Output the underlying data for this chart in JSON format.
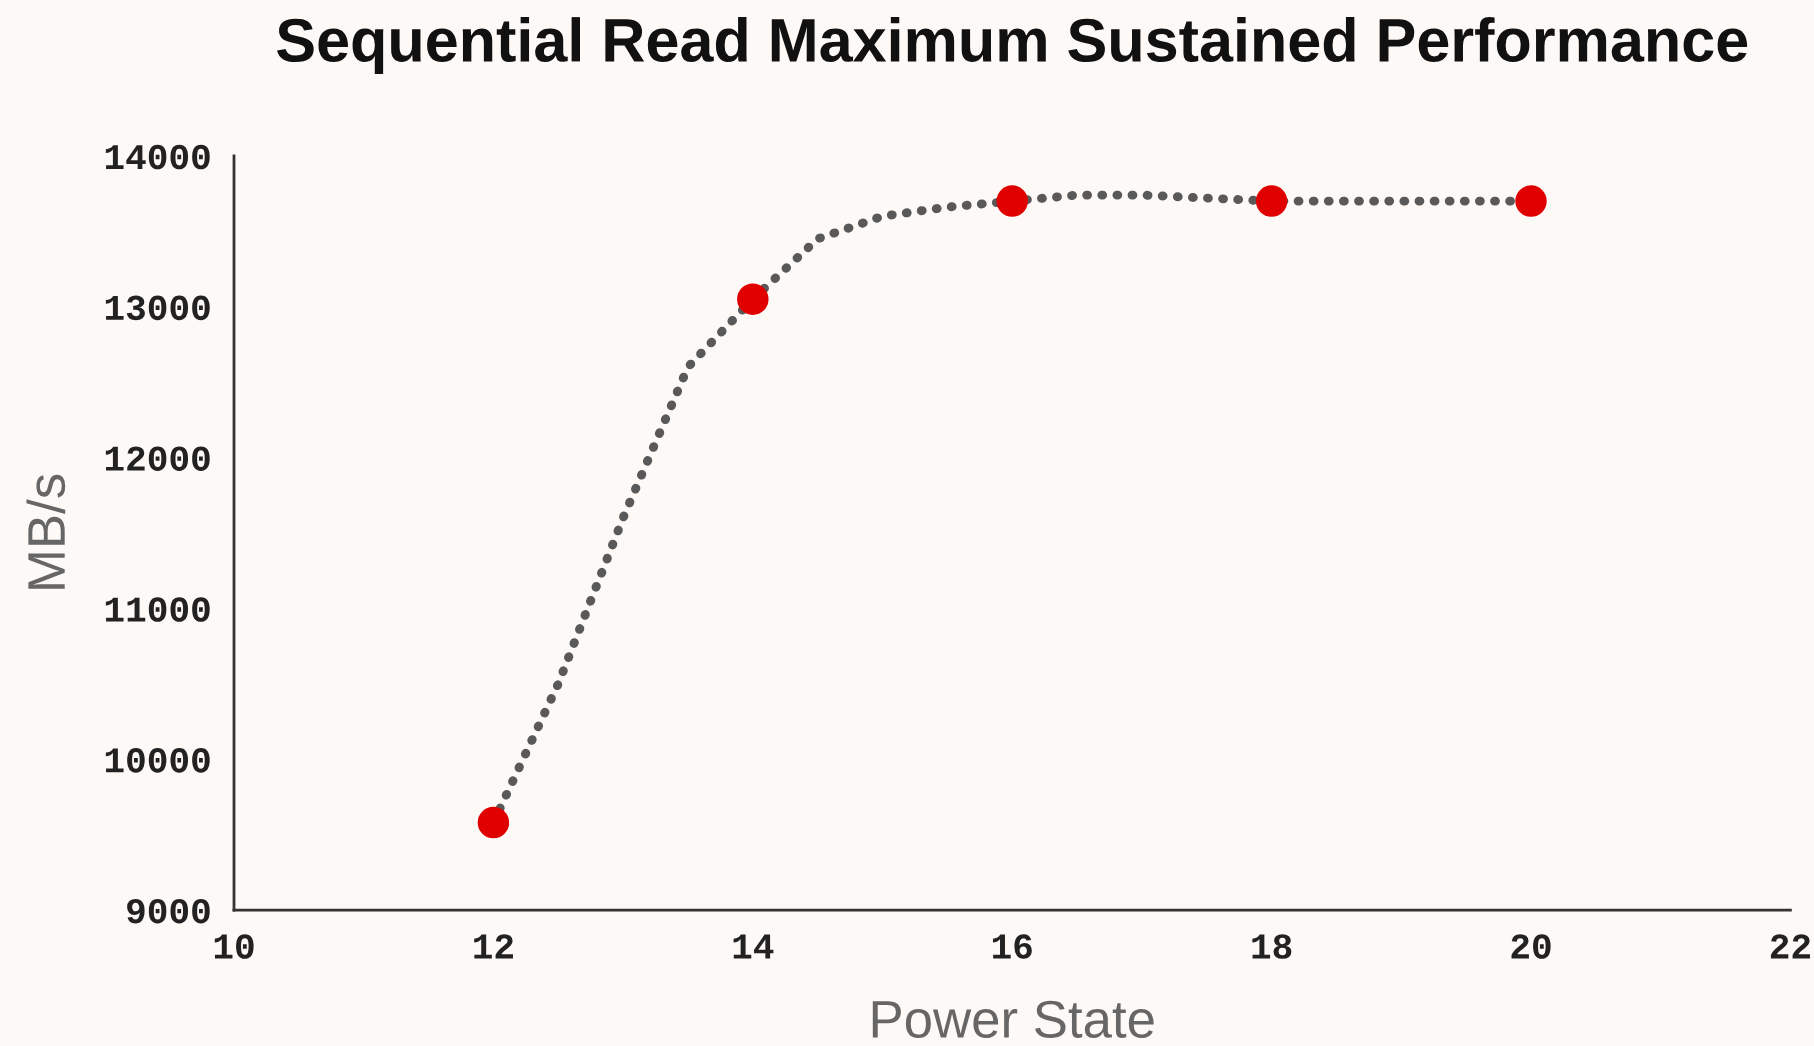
{
  "chart_data": {
    "type": "line",
    "title": "Sequential Read Maximum Sustained Performance",
    "xlabel": "Power State",
    "ylabel": "MB/s",
    "x": [
      12,
      14,
      16,
      18,
      20
    ],
    "series": [
      {
        "color": "#595959",
        "line_style": "dotted",
        "marker": "none",
        "x": [
          12,
          12.5,
          13,
          13.5,
          14,
          14.5,
          15,
          15.5,
          16,
          16.5,
          17,
          17.5,
          18,
          19,
          20
        ],
        "values": [
          9580,
          10500,
          11600,
          12600,
          13050,
          13450,
          13600,
          13660,
          13700,
          13740,
          13740,
          13720,
          13700,
          13700,
          13700
        ]
      },
      {
        "type": "scatter",
        "color": "#e00000",
        "marker": "circle",
        "values": [
          9580,
          13050,
          13700,
          13700,
          13700
        ]
      }
    ],
    "xlim": [
      10,
      22
    ],
    "xticks": [
      10,
      12,
      14,
      16,
      18,
      20,
      22
    ],
    "ylim": [
      9000,
      14000
    ],
    "yticks": [
      9000,
      10000,
      11000,
      12000,
      13000,
      14000
    ],
    "grid": false,
    "legend": false
  }
}
